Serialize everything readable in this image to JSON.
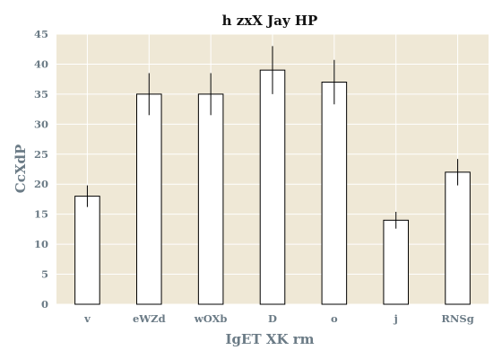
{
  "colors": {
    "plot_background": "#efe8d6",
    "grid": "#ffffff",
    "bar_fill": "#ffffff",
    "bar_edge": "#000000",
    "error_bar": "#000000",
    "label_text": "#6b7b86",
    "title_text": "#111111"
  },
  "chart_data": {
    "type": "bar",
    "title": "h zxX Jay HP",
    "xlabel": "IgET XK rm",
    "ylabel": "CcXdP",
    "categories": [
      "v",
      "eWZd",
      "wOXb",
      "D",
      "o",
      "j",
      "RNSg"
    ],
    "values": [
      18,
      35,
      35,
      39,
      37,
      14,
      22
    ],
    "errors": [
      1.8,
      3.5,
      3.5,
      4.0,
      3.7,
      1.4,
      2.2
    ],
    "ylim": [
      0,
      45
    ],
    "yticks": [
      0,
      5,
      10,
      15,
      20,
      25,
      30,
      35,
      40,
      45
    ],
    "grid": true,
    "legend": false
  }
}
